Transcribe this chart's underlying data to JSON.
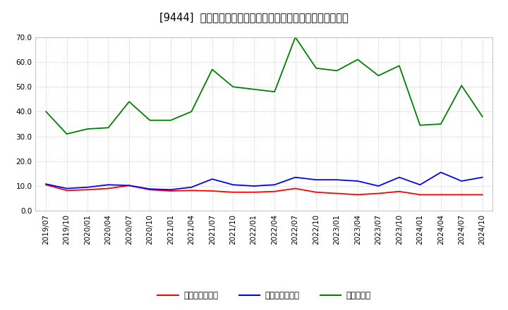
{
  "title": "[9444]  売上債権回転率、買入債務回転率、在庫回転率の推移",
  "x_labels": [
    "2019/07",
    "2019/10",
    "2020/01",
    "2020/04",
    "2020/07",
    "2020/10",
    "2021/01",
    "2021/04",
    "2021/07",
    "2021/10",
    "2022/01",
    "2022/04",
    "2022/07",
    "2022/10",
    "2023/01",
    "2023/04",
    "2023/07",
    "2023/10",
    "2024/01",
    "2024/04",
    "2024/07",
    "2024/10"
  ],
  "series": {
    "売上債権回転率": {
      "color": "#ff0000",
      "values": [
        10.5,
        8.2,
        8.5,
        9.0,
        10.2,
        8.5,
        8.0,
        8.2,
        8.0,
        7.5,
        7.5,
        7.8,
        9.0,
        7.5,
        7.0,
        6.5,
        7.0,
        7.8,
        6.5,
        6.5,
        6.5,
        6.5
      ]
    },
    "買入債務回転率": {
      "color": "#0000ff",
      "values": [
        10.8,
        9.0,
        9.5,
        10.5,
        10.2,
        8.8,
        8.5,
        9.5,
        12.8,
        10.5,
        10.0,
        10.5,
        13.5,
        12.5,
        12.5,
        12.0,
        10.0,
        13.5,
        10.5,
        15.5,
        12.0,
        13.5
      ]
    },
    "在庫回転率": {
      "color": "#008000",
      "values": [
        40.0,
        31.0,
        33.0,
        33.5,
        44.0,
        36.5,
        36.5,
        40.0,
        57.0,
        50.0,
        49.0,
        48.0,
        70.0,
        57.5,
        56.5,
        61.0,
        54.5,
        58.5,
        34.5,
        35.0,
        50.5,
        38.0
      ]
    }
  },
  "ylim": [
    0.0,
    70.0
  ],
  "yticks": [
    0.0,
    10.0,
    20.0,
    30.0,
    40.0,
    50.0,
    60.0,
    70.0
  ],
  "legend_labels": [
    "売上債権回転率",
    "買入債務回転率",
    "在庫回転率"
  ],
  "background_color": "#ffffff",
  "grid_color": "#bbbbbb",
  "title_fontsize": 10.5,
  "label_fontsize": 7.5
}
